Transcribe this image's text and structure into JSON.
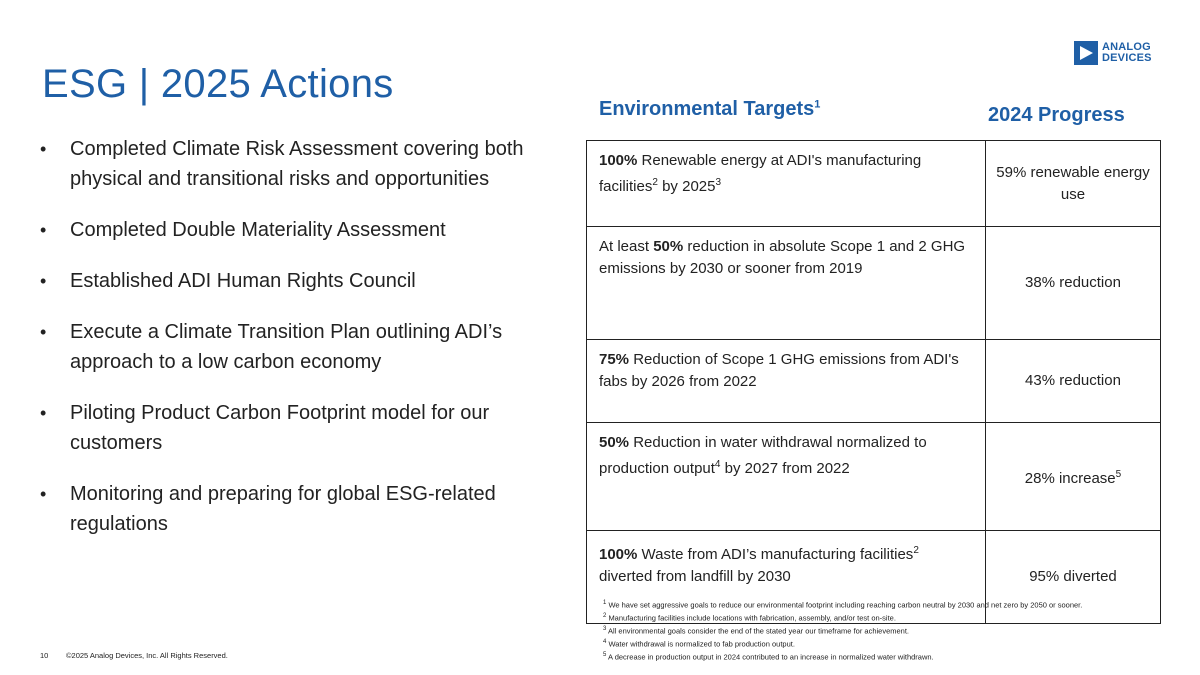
{
  "title": "ESG | 2025 Actions",
  "logo": {
    "line1": "ANALOG",
    "line2": "DEVICES",
    "color": "#1f5fa6"
  },
  "bullets": [
    "Completed Climate Risk Assessment covering both physical and transitional risks and opportunities",
    "Completed Double Materiality Assessment",
    "Established ADI Human Rights Council",
    "Execute a Climate Transition Plan outlining ADI’s approach to a low carbon economy",
    "Piloting Product Carbon Footprint model for our customers",
    "Monitoring and preparing for global ESG-related regulations"
  ],
  "bullet_marker": "•",
  "table": {
    "header_targets": "Environmental Targets",
    "header_targets_note": "1",
    "header_progress": "2024 Progress",
    "rows": [
      {
        "bold": "100%",
        "text_a": " Renewable energy at ADI's manufacturing facilities",
        "sup_a": "2",
        "text_b": " by 2025",
        "sup_b": "3",
        "text_c": "",
        "progress": "59% renewable energy use",
        "progress_sup": ""
      },
      {
        "lead": "At least ",
        "bold": "50%",
        "text_a": " reduction in absolute Scope 1 and 2 GHG emissions by 2030 or sooner from 2019",
        "sup_a": "",
        "text_b": "",
        "sup_b": "",
        "text_c": "",
        "progress": "38% reduction",
        "progress_sup": ""
      },
      {
        "bold": "75%",
        "text_a": " Reduction of Scope 1 GHG emissions from ADI's fabs by 2026 from 2022",
        "sup_a": "",
        "text_b": "",
        "sup_b": "",
        "text_c": "",
        "progress": "43% reduction",
        "progress_sup": ""
      },
      {
        "bold": "50%",
        "text_a": " Reduction in water withdrawal normalized to production output",
        "sup_a": "4",
        "text_b": " by 2027 from 2022",
        "sup_b": "",
        "text_c": "",
        "progress": "28% increase",
        "progress_sup": "5"
      },
      {
        "bold": "100%",
        "text_a": " Waste from ADI’s manufacturing facilities",
        "sup_a": "2",
        "text_b": " diverted from landfill by 2030",
        "sup_b": "",
        "text_c": "",
        "progress": "95% diverted",
        "progress_sup": ""
      }
    ]
  },
  "footnotes": [
    {
      "num": "1",
      "text": "We have set aggressive goals to reduce our environmental footprint including reaching carbon neutral by 2030 and net zero by 2050 or sooner."
    },
    {
      "num": "2",
      "text": "Manufacturing facilities include locations with fabrication, assembly, and/or test on-site."
    },
    {
      "num": "3",
      "text": "All environmental goals consider the end of the stated year our timeframe for achievement."
    },
    {
      "num": "4",
      "text": "Water withdrawal is normalized to fab production output."
    },
    {
      "num": "5",
      "text": "A decrease in production output in 2024 contributed to an increase in normalized water withdrawn."
    }
  ],
  "page_number": "10",
  "copyright": "©2025 Analog Devices, Inc. All Rights Reserved.",
  "colors": {
    "accent": "#1f5fa6",
    "text": "#222222"
  }
}
